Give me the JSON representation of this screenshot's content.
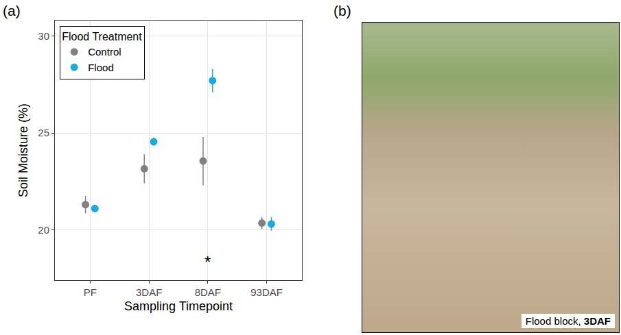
{
  "chart_data": {
    "type": "scatter",
    "panel_label": "(a)",
    "x_label": "Sampling Timepoint",
    "y_label": "Soil Moisture (%)",
    "categories": [
      "PF",
      "3DAF",
      "8DAF",
      "93DAF"
    ],
    "series": [
      {
        "name": "Control",
        "color": "#808080",
        "values": [
          21.3,
          23.15,
          23.55,
          20.35
        ],
        "error": [
          0.45,
          0.75,
          1.25,
          0.3
        ]
      },
      {
        "name": "Flood",
        "color": "#1aa9e6",
        "values": [
          21.1,
          24.55,
          27.7,
          20.3
        ],
        "error": [
          0.1,
          0.2,
          0.6,
          0.35
        ]
      }
    ],
    "legend_title": "Flood Treatment",
    "legend": "top-left",
    "ylim": [
      17.4,
      30.8
    ],
    "yticks": [
      20,
      25,
      30
    ],
    "grid": true,
    "annotations": [
      {
        "text": "*",
        "x": "8DAF",
        "y": 18.35
      }
    ]
  },
  "photo": {
    "panel_label": "(b)",
    "caption": "Flood block, 3DAF",
    "caption_bold": "3DAF"
  }
}
